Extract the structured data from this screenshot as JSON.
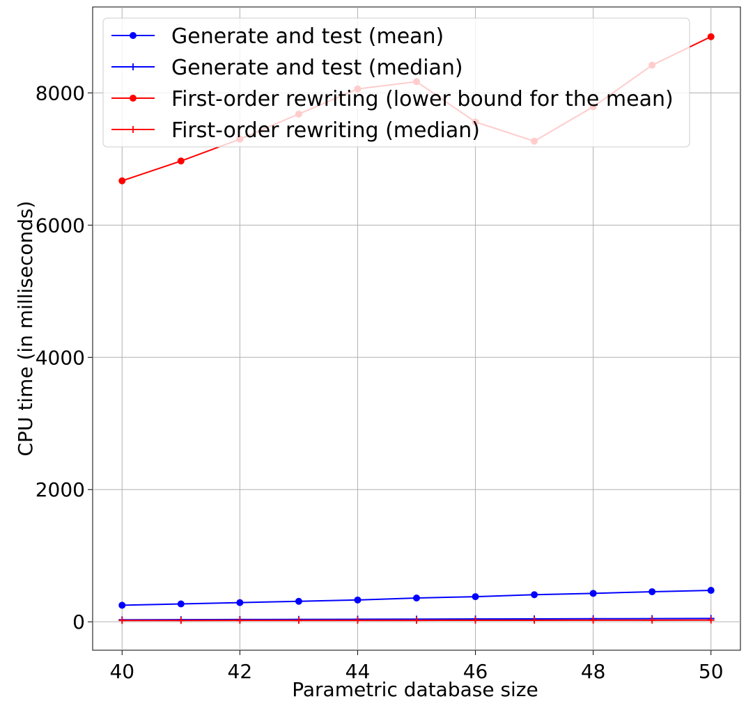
{
  "chart_data": {
    "type": "line",
    "xlabel": "Parametric database size",
    "ylabel": "CPU time (in milliseconds)",
    "xlim": [
      39.5,
      50.5
    ],
    "ylim": [
      -430,
      9300
    ],
    "x_ticks": [
      "40",
      "42",
      "44",
      "46",
      "48",
      "50"
    ],
    "y_ticks": [
      "0",
      "2000",
      "4000",
      "6000",
      "8000"
    ],
    "grid": true,
    "legend_position": "top-left",
    "x": [
      40,
      41,
      42,
      43,
      44,
      45,
      46,
      47,
      48,
      49,
      50
    ],
    "series": [
      {
        "name": "Generate and test (mean)",
        "color": "#0000ff",
        "marker": "circle",
        "values": [
          250,
          270,
          290,
          310,
          330,
          360,
          380,
          410,
          430,
          455,
          475
        ]
      },
      {
        "name": "Generate and test (median)",
        "color": "#0000ff",
        "marker": "plus",
        "values": [
          30,
          32,
          34,
          36,
          38,
          40,
          42,
          44,
          46,
          48,
          50
        ]
      },
      {
        "name": "First-order rewriting (lower bound for the mean)",
        "color": "#ff0000",
        "faded_color": "#ffcccc",
        "marker": "circle",
        "values": [
          6670,
          6970,
          7300,
          7680,
          8060,
          8170,
          7560,
          7270,
          7790,
          8420,
          8850
        ]
      },
      {
        "name": "First-order rewriting (median)",
        "color": "#ff0000",
        "marker": "plus",
        "values": [
          20,
          20,
          21,
          21,
          22,
          22,
          23,
          23,
          24,
          24,
          25
        ]
      }
    ]
  }
}
